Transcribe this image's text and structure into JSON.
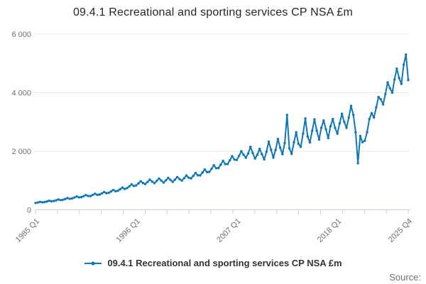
{
  "title": "09.4.1 Recreational and sporting services CP NSA £m",
  "legend": {
    "label": "09.4.1 Recreational and sporting services CP NSA £m"
  },
  "source_label": "Source:",
  "colors": {
    "line": "#0F76B8",
    "grid": "#E6E6E6",
    "axis": "#C7CEDC",
    "tick_text": "#6E6E6E"
  },
  "chart_data": {
    "type": "line",
    "title": "09.4.1 Recreational and sporting services CP NSA £m",
    "unit": "£m",
    "frequency": "quarterly",
    "x_start": "1985 Q1",
    "x_end": "2025 Q4",
    "ylim": [
      0,
      6000
    ],
    "yticks": [
      6000,
      4000,
      2000,
      0
    ],
    "ytick_labels": [
      "6 000",
      "4 000",
      "2 000",
      "0"
    ],
    "xtick_labels": [
      "1985 Q1",
      "1996 Q1",
      "2007 Q1",
      "2018 Q1",
      "2025 Q4"
    ],
    "xtick_quarter_index": [
      0,
      44,
      88,
      132,
      163
    ],
    "x_minor_tick_count": 18,
    "grid": "horizontal",
    "legend_position": "bottom",
    "series": [
      {
        "name": "09.4.1 Recreational and sporting services CP NSA £m",
        "values": [
          232,
          250,
          272,
          256,
          264,
          285,
          310,
          290,
          300,
          325,
          352,
          330,
          342,
          370,
          400,
          375,
          388,
          420,
          455,
          425,
          430,
          465,
          505,
          472,
          468,
          505,
          548,
          512,
          518,
          560,
          608,
          568,
          578,
          625,
          678,
          634,
          648,
          700,
          760,
          710,
          740,
          800,
          868,
          812,
          833,
          900,
          976,
          913,
          879,
          950,
          1030,
          964,
          911,
          985,
          1068,
          999,
          930,
          1005,
          1090,
          1020,
          953,
          1030,
          1117,
          1045,
          999,
          1080,
          1171,
          1096,
          1073,
          1160,
          1258,
          1177,
          1175,
          1270,
          1377,
          1288,
          1295,
          1400,
          1518,
          1420,
          1425,
          1540,
          1670,
          1562,
          1563,
          1690,
          1833,
          1715,
          1702,
          1840,
          2000,
          1880,
          1780,
          1920,
          2150,
          1940,
          1750,
          1880,
          2080,
          1900,
          1720,
          1980,
          2330,
          2050,
          1780,
          2050,
          2420,
          2120,
          1900,
          2280,
          3240,
          2100,
          1910,
          2300,
          2650,
          2250,
          2150,
          2600,
          3120,
          2500,
          2300,
          2700,
          3090,
          2700,
          2400,
          2800,
          3050,
          2750,
          2450,
          2850,
          3100,
          2800,
          2600,
          2950,
          3280,
          3000,
          2800,
          3150,
          3550,
          3240,
          2650,
          1590,
          2520,
          2310,
          2360,
          2650,
          3100,
          3300,
          3150,
          3500,
          3850,
          3770,
          3600,
          3950,
          4350,
          4150,
          4000,
          4450,
          4820,
          4500,
          4300,
          4950,
          5300,
          4430
        ]
      }
    ]
  }
}
